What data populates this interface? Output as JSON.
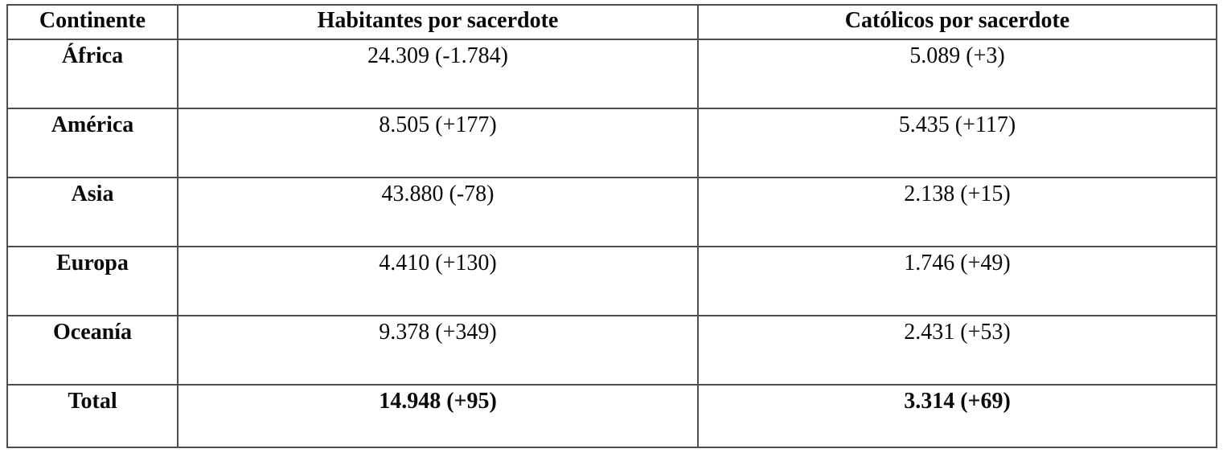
{
  "table": {
    "columns": {
      "continent": "Continente",
      "inhabitants_per_priest": "Habitantes por sacerdote",
      "catholics_per_priest": "Católicos por sacerdote"
    },
    "rows": [
      {
        "continent": "África",
        "inhabitants": "24.309 (-1.784)",
        "catholics": "5.089 (+3)"
      },
      {
        "continent": "América",
        "inhabitants": "8.505 (+177)",
        "catholics": "5.435 (+117)"
      },
      {
        "continent": "Asia",
        "inhabitants": "43.880 (-78)",
        "catholics": "2.138 (+15)"
      },
      {
        "continent": "Europa",
        "inhabitants": "4.410 (+130)",
        "catholics": "1.746 (+49)"
      },
      {
        "continent": "Oceanía",
        "inhabitants": "9.378 (+349)",
        "catholics": "2.431 (+53)"
      },
      {
        "continent": "Total",
        "inhabitants": "14.948 (+95)",
        "catholics": "3.314 (+69)"
      }
    ]
  },
  "chart_data": {
    "type": "table",
    "title": "",
    "columns": [
      "Continente",
      "Habitantes por sacerdote",
      "Católicos por sacerdote"
    ],
    "rows": [
      [
        "África",
        "24.309 (-1.784)",
        "5.089 (+3)"
      ],
      [
        "América",
        "8.505 (+177)",
        "5.435 (+117)"
      ],
      [
        "Asia",
        "43.880 (-78)",
        "2.138 (+15)"
      ],
      [
        "Europa",
        "4.410 (+130)",
        "1.746 (+49)"
      ],
      [
        "Oceanía",
        "9.378 (+349)",
        "2.431 (+53)"
      ],
      [
        "Total",
        "14.948 (+95)",
        "3.314 (+69)"
      ]
    ]
  },
  "colors": {
    "border": "#4d4d4d",
    "text": "#0a0a0a",
    "background": "#ffffff"
  }
}
